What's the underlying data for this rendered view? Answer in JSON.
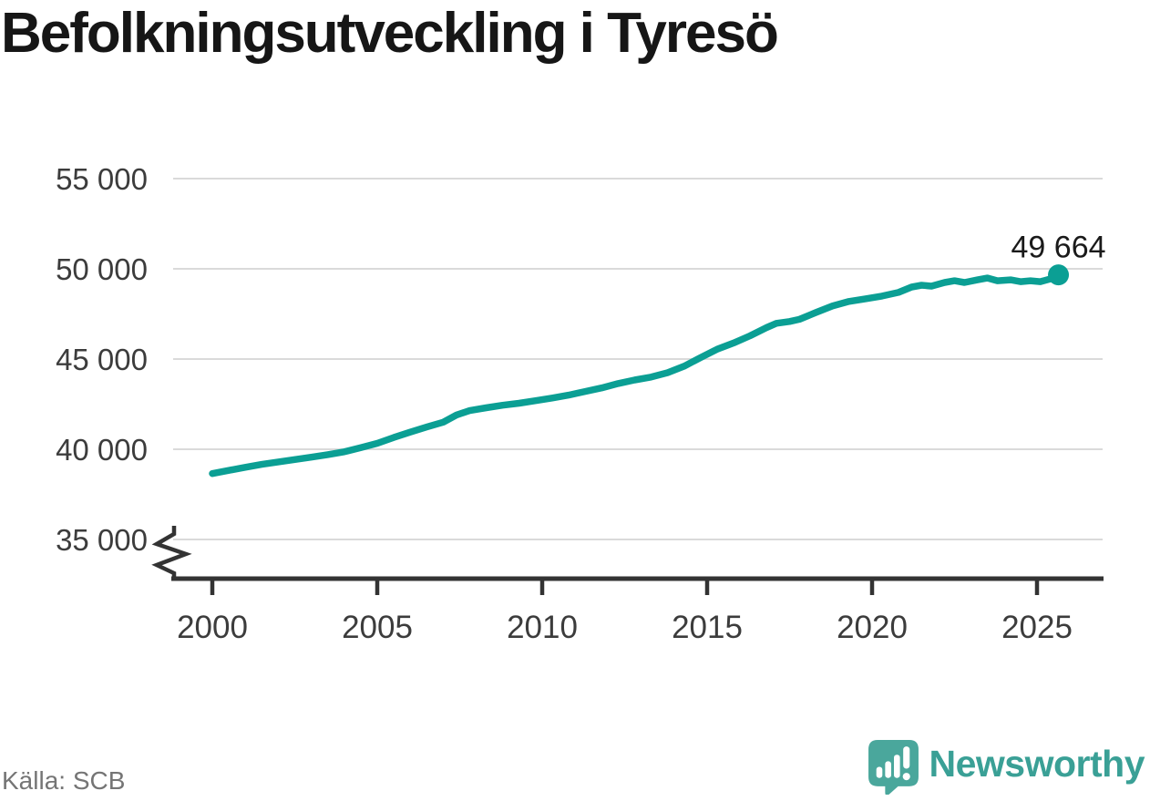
{
  "title": "Befolkningsutveckling i Tyresö",
  "source": "Källa: SCB",
  "branding": {
    "logo_text": "Newsworthy",
    "logo_color": "#3aa096",
    "icon_color": "#4aa79c",
    "icon_name": "newsworthy-speech-bubble-bar-chart-icon"
  },
  "chart_data": {
    "type": "line",
    "title": "Befolkningsutveckling i Tyresö",
    "source_label": "Källa: SCB",
    "xlabel": "",
    "ylabel": "",
    "x_ticks": [
      2000,
      2005,
      2010,
      2015,
      2020,
      2025
    ],
    "x_tick_labels": [
      "2000",
      "2005",
      "2010",
      "2015",
      "2020",
      "2025"
    ],
    "y_ticks": [
      35000,
      40000,
      45000,
      50000,
      55000
    ],
    "y_tick_labels": [
      "35 000",
      "40 000",
      "45 000",
      "50 000",
      "55 000"
    ],
    "ylim": [
      35000,
      55000
    ],
    "xlim": [
      1998.8,
      2027
    ],
    "grid": "horizontal",
    "axis_break_at_bottom": true,
    "legend": "none",
    "line_color": "#0b9f94",
    "grid_color": "#dadada",
    "axis_color": "#333333",
    "tick_label_color": "#3c3c3c",
    "annotation_color": "#1a1a1a",
    "end_label": "49 664",
    "end_value": 49664,
    "series": [
      {
        "name": "Befolkning i Tyresö",
        "points": [
          [
            2000.0,
            38650
          ],
          [
            2000.5,
            38830
          ],
          [
            2001.0,
            39000
          ],
          [
            2001.5,
            39160
          ],
          [
            2002.0,
            39300
          ],
          [
            2002.5,
            39430
          ],
          [
            2003.0,
            39560
          ],
          [
            2003.5,
            39700
          ],
          [
            2004.0,
            39860
          ],
          [
            2004.5,
            40090
          ],
          [
            2005.0,
            40330
          ],
          [
            2005.5,
            40650
          ],
          [
            2006.0,
            40950
          ],
          [
            2006.5,
            41230
          ],
          [
            2007.0,
            41500
          ],
          [
            2007.4,
            41900
          ],
          [
            2007.8,
            42140
          ],
          [
            2008.3,
            42300
          ],
          [
            2008.8,
            42440
          ],
          [
            2009.3,
            42550
          ],
          [
            2009.8,
            42690
          ],
          [
            2010.3,
            42840
          ],
          [
            2010.8,
            43000
          ],
          [
            2011.3,
            43200
          ],
          [
            2011.8,
            43400
          ],
          [
            2012.3,
            43640
          ],
          [
            2012.8,
            43840
          ],
          [
            2013.3,
            44000
          ],
          [
            2013.8,
            44240
          ],
          [
            2014.3,
            44600
          ],
          [
            2014.8,
            45080
          ],
          [
            2015.3,
            45540
          ],
          [
            2015.8,
            45890
          ],
          [
            2016.3,
            46290
          ],
          [
            2016.8,
            46740
          ],
          [
            2017.1,
            46980
          ],
          [
            2017.5,
            47080
          ],
          [
            2017.8,
            47200
          ],
          [
            2018.3,
            47580
          ],
          [
            2018.8,
            47940
          ],
          [
            2019.3,
            48190
          ],
          [
            2019.8,
            48340
          ],
          [
            2020.3,
            48490
          ],
          [
            2020.8,
            48690
          ],
          [
            2021.2,
            48990
          ],
          [
            2021.5,
            49090
          ],
          [
            2021.8,
            49040
          ],
          [
            2022.2,
            49240
          ],
          [
            2022.5,
            49340
          ],
          [
            2022.8,
            49240
          ],
          [
            2023.2,
            49390
          ],
          [
            2023.5,
            49490
          ],
          [
            2023.8,
            49340
          ],
          [
            2024.2,
            49390
          ],
          [
            2024.5,
            49290
          ],
          [
            2024.8,
            49340
          ],
          [
            2025.1,
            49290
          ],
          [
            2025.4,
            49440
          ],
          [
            2025.65,
            49664
          ]
        ]
      }
    ]
  }
}
